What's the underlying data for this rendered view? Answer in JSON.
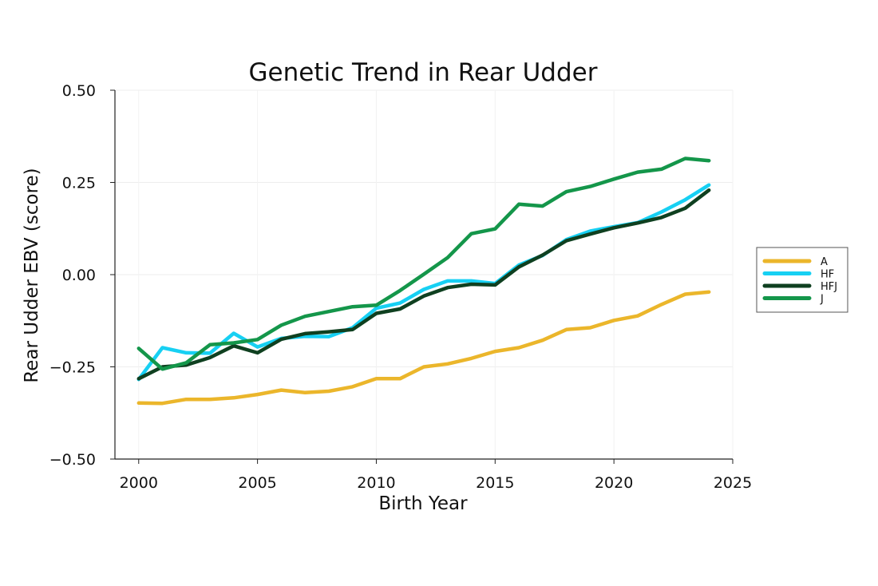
{
  "chart_data": {
    "type": "line",
    "title": "Genetic Trend in Rear Udder",
    "xlabel": "Birth Year",
    "ylabel": "Rear Udder EBV (score)",
    "xlim": [
      1999,
      2025
    ],
    "ylim": [
      -0.5,
      0.5
    ],
    "xticks": [
      2000,
      2005,
      2010,
      2015,
      2020,
      2025
    ],
    "xtick_labels": [
      "2000",
      "2005",
      "2010",
      "2015",
      "2020",
      "2025"
    ],
    "yticks": [
      0.5,
      0.25,
      0.0,
      -0.25,
      -0.5
    ],
    "ytick_labels": [
      "0.50",
      "0.25",
      "0.00",
      "−0.25",
      "−0.50"
    ],
    "grid": true,
    "legend_position": "right",
    "x": [
      2000,
      2001,
      2002,
      2003,
      2004,
      2005,
      2006,
      2007,
      2008,
      2009,
      2010,
      2011,
      2012,
      2013,
      2014,
      2015,
      2016,
      2017,
      2018,
      2019,
      2020,
      2021,
      2022,
      2023,
      2024
    ],
    "series": [
      {
        "name": "A",
        "color": "#ebb62b",
        "values": [
          -0.348,
          -0.349,
          -0.338,
          -0.338,
          -0.334,
          -0.325,
          -0.313,
          -0.32,
          -0.316,
          -0.304,
          -0.282,
          -0.282,
          -0.25,
          -0.242,
          -0.227,
          -0.208,
          -0.198,
          -0.178,
          -0.149,
          -0.144,
          -0.124,
          -0.112,
          -0.081,
          -0.053,
          -0.047
        ]
      },
      {
        "name": "HF",
        "color": "#17d0f3",
        "values": [
          -0.284,
          -0.198,
          -0.212,
          -0.213,
          -0.159,
          -0.196,
          -0.173,
          -0.167,
          -0.168,
          -0.144,
          -0.091,
          -0.077,
          -0.04,
          -0.017,
          -0.017,
          -0.024,
          0.026,
          0.052,
          0.095,
          0.118,
          0.13,
          0.141,
          0.17,
          0.203,
          0.243
        ]
      },
      {
        "name": "HFJ",
        "color": "#0f4020",
        "values": [
          -0.282,
          -0.25,
          -0.245,
          -0.225,
          -0.193,
          -0.212,
          -0.175,
          -0.16,
          -0.155,
          -0.149,
          -0.105,
          -0.093,
          -0.058,
          -0.035,
          -0.026,
          -0.028,
          0.021,
          0.053,
          0.092,
          0.11,
          0.127,
          0.14,
          0.155,
          0.18,
          0.229
        ]
      },
      {
        "name": "J",
        "color": "#14964a",
        "values": [
          -0.2,
          -0.256,
          -0.239,
          -0.19,
          -0.185,
          -0.176,
          -0.137,
          -0.113,
          -0.1,
          -0.087,
          -0.083,
          -0.043,
          0.001,
          0.046,
          0.111,
          0.124,
          0.191,
          0.186,
          0.225,
          0.239,
          0.259,
          0.278,
          0.286,
          0.315,
          0.309
        ]
      }
    ]
  }
}
